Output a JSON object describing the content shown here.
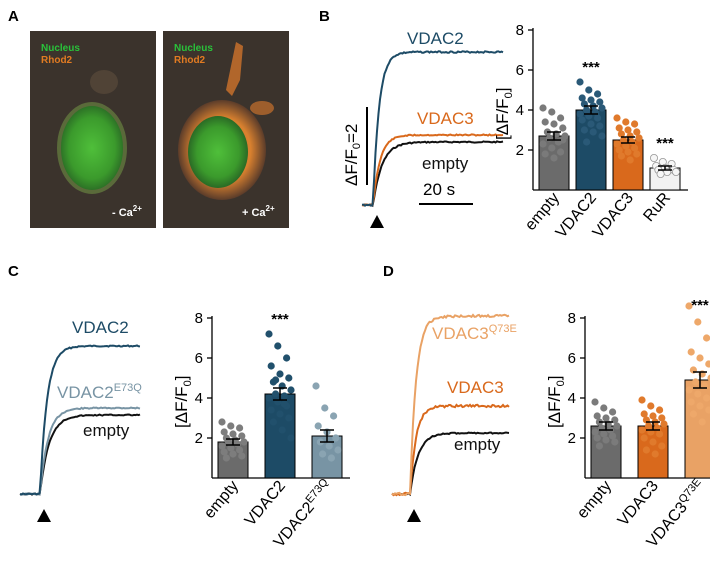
{
  "colors": {
    "empty": "#6b6b6b",
    "vdac2": "#1d4b66",
    "vdac3": "#d9691c",
    "rur": "#f2f2f2",
    "vdac2_e73q": "#7894a4",
    "vdac3_q73e": "#e9a265",
    "trace_empty": "#111111"
  },
  "panels": {
    "a": {
      "label": "A",
      "legend_nucleus": "Nucleus",
      "legend_rhod2": "Rhod2",
      "left_caption": "- Ca",
      "right_caption": "+ Ca",
      "ca_superscript": "2+"
    },
    "b": {
      "label": "B",
      "trace_labels": [
        "VDAC2",
        "VDAC3",
        "empty"
      ],
      "scale_y_label": "ΔF/F",
      "scale_y_sub": "0",
      "scale_y_value": "=2",
      "scale_x_label": "20 s"
    },
    "c": {
      "label": "C",
      "trace_labels": [
        "VDAC2",
        "VDAC2",
        "empty"
      ],
      "trace_superscripts": [
        "",
        "E73Q",
        ""
      ]
    },
    "d": {
      "label": "D",
      "trace_labels": [
        "VDAC3",
        "VDAC3",
        "empty"
      ],
      "trace_superscripts": [
        "Q73E",
        "",
        ""
      ]
    }
  },
  "chart_data": [
    {
      "panel": "B",
      "type": "bar",
      "ylabel": "[ΔF/F0]",
      "ylim": [
        0,
        8
      ],
      "yticks": [
        2,
        4,
        6,
        8
      ],
      "categories": [
        "empty",
        "VDAC2",
        "VDAC3",
        "RuR"
      ],
      "category_superscripts": [
        "",
        "",
        "",
        ""
      ],
      "values": [
        2.7,
        4.0,
        2.5,
        1.1
      ],
      "sem": [
        0.2,
        0.2,
        0.15,
        0.1
      ],
      "significance": [
        "",
        "***",
        "",
        "***"
      ],
      "points": [
        [
          4.1,
          3.9,
          3.6,
          3.4,
          3.3,
          3.1,
          2.9,
          2.8,
          2.7,
          2.6,
          2.4,
          2.3,
          2.1,
          1.9,
          1.8,
          1.6,
          2.5
        ],
        [
          5.4,
          5.0,
          4.8,
          4.6,
          4.5,
          4.4,
          4.3,
          4.2,
          4.1,
          4.0,
          3.9,
          3.8,
          3.7,
          3.6,
          3.5,
          3.3,
          3.2,
          3.0,
          2.9,
          2.7,
          2.4
        ],
        [
          3.6,
          3.4,
          3.3,
          3.1,
          3.0,
          2.9,
          2.8,
          2.7,
          2.6,
          2.5,
          2.4,
          2.3,
          2.2,
          2.1,
          2.0,
          1.9,
          1.8,
          1.7,
          1.5,
          2.6
        ],
        [
          1.6,
          1.4,
          1.3,
          1.2,
          1.1,
          1.0,
          1.0,
          0.9,
          0.9,
          0.8
        ]
      ]
    },
    {
      "panel": "C",
      "type": "bar",
      "ylabel": "[ΔF/F0]",
      "ylim": [
        0,
        8
      ],
      "yticks": [
        2,
        4,
        6,
        8
      ],
      "categories": [
        "empty",
        "VDAC2",
        "VDAC2"
      ],
      "category_superscripts": [
        "",
        "",
        "E73Q"
      ],
      "values": [
        1.8,
        4.2,
        2.1
      ],
      "sem": [
        0.15,
        0.3,
        0.3
      ],
      "significance": [
        "",
        "***",
        ""
      ],
      "points": [
        [
          2.8,
          2.6,
          2.5,
          2.3,
          2.2,
          2.1,
          2.0,
          1.9,
          1.8,
          1.8,
          1.7,
          1.6,
          1.5,
          1.4,
          1.3,
          1.2,
          1.1,
          1.0
        ],
        [
          7.2,
          6.6,
          6.0,
          5.6,
          5.2,
          5.0,
          4.8,
          4.6,
          4.4,
          4.2,
          4.1,
          4.0,
          3.8,
          3.6,
          3.4,
          3.2,
          3.0,
          2.8,
          2.4,
          2.0,
          4.9,
          3.7
        ],
        [
          4.6,
          3.5,
          3.1,
          2.6,
          2.3,
          2.0,
          1.8,
          1.6,
          1.4,
          1.2,
          1.0
        ]
      ]
    },
    {
      "panel": "D",
      "type": "bar",
      "ylabel": "[ΔF/F0]",
      "ylim": [
        0,
        8
      ],
      "yticks": [
        2,
        4,
        6,
        8
      ],
      "categories": [
        "empty",
        "VDAC3",
        "VDAC3"
      ],
      "category_superscripts": [
        "",
        "",
        "Q73E"
      ],
      "values": [
        2.6,
        2.6,
        4.9
      ],
      "sem": [
        0.2,
        0.2,
        0.4
      ],
      "significance": [
        "",
        "",
        "***"
      ],
      "points": [
        [
          3.8,
          3.5,
          3.3,
          3.1,
          3.0,
          2.9,
          2.8,
          2.7,
          2.6,
          2.5,
          2.4,
          2.3,
          2.2,
          2.1,
          2.0,
          1.9,
          1.8,
          1.6
        ],
        [
          3.9,
          3.6,
          3.4,
          3.2,
          3.1,
          3.0,
          2.9,
          2.8,
          2.7,
          2.6,
          2.5,
          2.4,
          2.3,
          2.2,
          2.0,
          1.8,
          1.6,
          1.4,
          1.2
        ],
        [
          8.6,
          7.8,
          7.0,
          6.3,
          6.0,
          5.7,
          5.4,
          5.2,
          5.0,
          4.8,
          4.6,
          4.4,
          4.2,
          4.0,
          3.8,
          3.6,
          3.4,
          3.2,
          2.8
        ]
      ]
    }
  ]
}
